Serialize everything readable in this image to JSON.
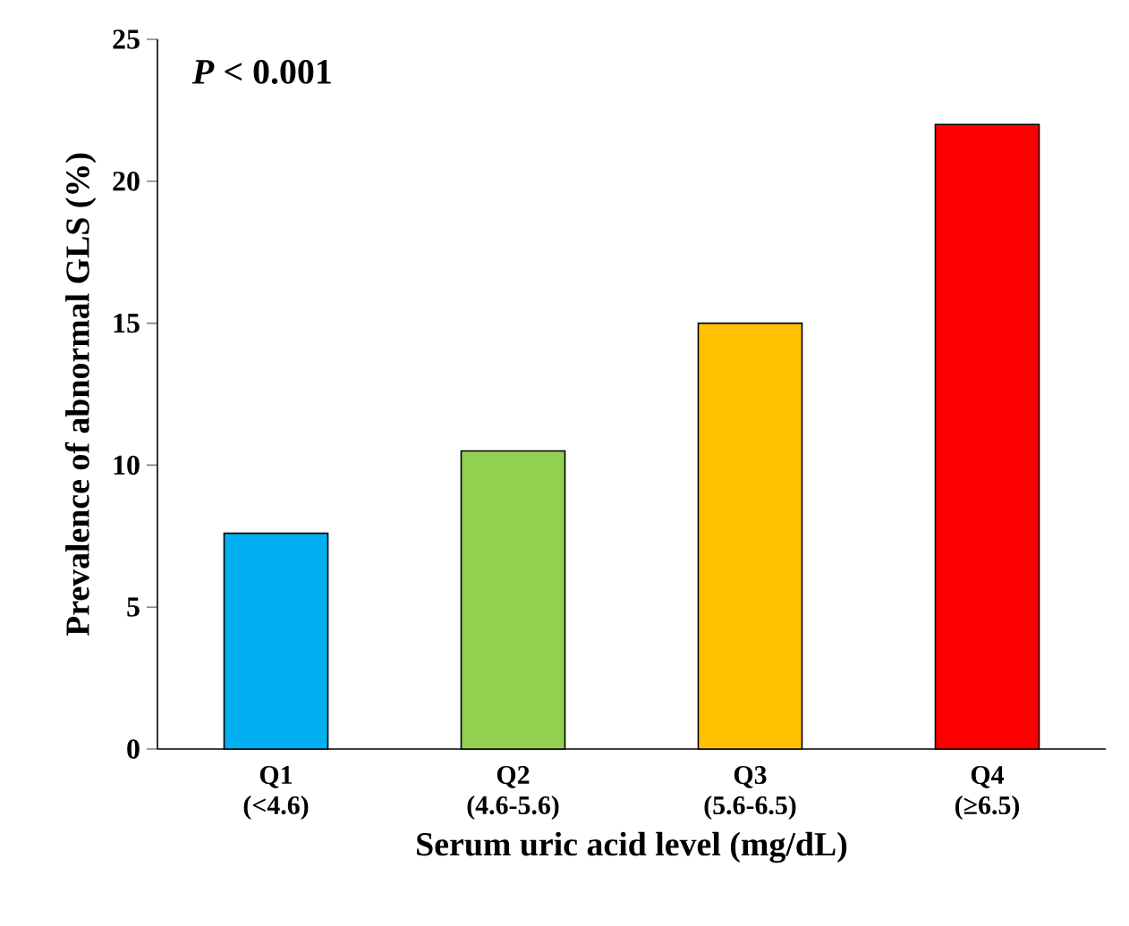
{
  "chart_data": {
    "type": "bar",
    "xlabel": "Serum uric acid level (mg/dL)",
    "ylabel": "Prevalence of abnormal GLS (%)",
    "categories": [
      "Q1 (<4.6)",
      "Q2 (4.6-5.6)",
      "Q3 (5.6-6.5)",
      "Q4 (≥6.5)"
    ],
    "values": [
      7.6,
      10.5,
      15.0,
      22.0
    ],
    "colors": [
      "#00b0f0",
      "#92d050",
      "#ffc000",
      "#ff0000"
    ],
    "ylim": [
      0,
      25
    ],
    "yticks": [
      0,
      5,
      10,
      15,
      20,
      25
    ],
    "annotations": [
      "*P* < 0.001"
    ]
  }
}
